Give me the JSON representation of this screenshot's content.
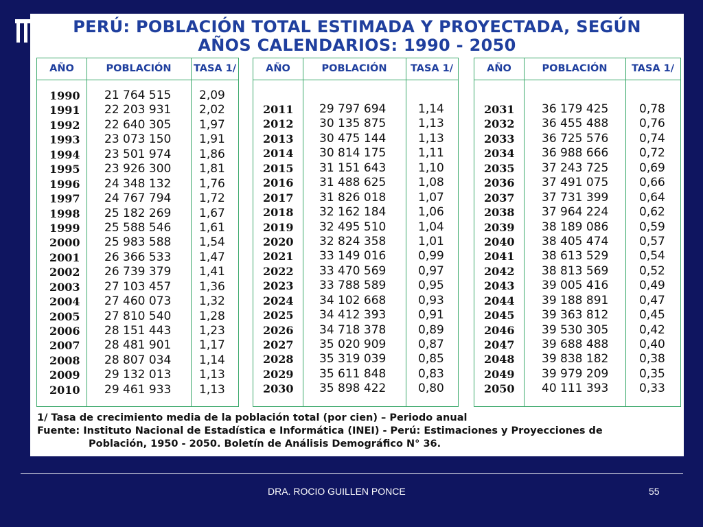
{
  "title": {
    "line1": "PERÚ: POBLACIÓN TOTAL ESTIMADA Y PROYECTADA, SEGÚN",
    "line2": "AÑOS CALENDARIOS: 1990 - 2050"
  },
  "headers": {
    "year": "AÑO",
    "population": "POBLACIÓN",
    "rate": "TASA 1/"
  },
  "tables": [
    {
      "rows": [
        [
          "1990",
          "21 764 515",
          "2,09"
        ],
        [
          "1991",
          "22 203 931",
          "2,02"
        ],
        [
          "1992",
          "22 640 305",
          "1,97"
        ],
        [
          "1993",
          "23 073 150",
          "1,91"
        ],
        [
          "1994",
          "23 501 974",
          "1,86"
        ],
        [
          "1995",
          "23 926 300",
          "1,81"
        ],
        [
          "1996",
          "24 348 132",
          "1,76"
        ],
        [
          "1997",
          "24 767 794",
          "1,72"
        ],
        [
          "1998",
          "25 182 269",
          "1,67"
        ],
        [
          "1999",
          "25 588 546",
          "1,61"
        ],
        [
          "2000",
          "25 983 588",
          "1,54"
        ],
        [
          "2001",
          "26 366 533",
          "1,47"
        ],
        [
          "2002",
          "26 739 379",
          "1,41"
        ],
        [
          "2003",
          "27 103 457",
          "1,36"
        ],
        [
          "2004",
          "27 460 073",
          "1,32"
        ],
        [
          "2005",
          "27 810 540",
          "1,28"
        ],
        [
          "2006",
          "28 151 443",
          "1,23"
        ],
        [
          "2007",
          "28 481 901",
          "1,17"
        ],
        [
          "2008",
          "28 807 034",
          "1,14"
        ],
        [
          "2009",
          "29 132 013",
          "1,13"
        ],
        [
          "2010",
          "29 461 933",
          "1,13"
        ]
      ]
    },
    {
      "rows": [
        [
          "2011",
          "29 797 694",
          "1,14"
        ],
        [
          "2012",
          "30 135 875",
          "1,13"
        ],
        [
          "2013",
          "30 475 144",
          "1,13"
        ],
        [
          "2014",
          "30 814 175",
          "1,11"
        ],
        [
          "2015",
          "31 151 643",
          "1,10"
        ],
        [
          "2016",
          "31 488 625",
          "1,08"
        ],
        [
          "2017",
          "31 826 018",
          "1,07"
        ],
        [
          "2018",
          "32 162 184",
          "1,06"
        ],
        [
          "2019",
          "32 495 510",
          "1,04"
        ],
        [
          "2020",
          "32 824 358",
          "1,01"
        ],
        [
          "2021",
          "33 149 016",
          "0,99"
        ],
        [
          "2022",
          "33 470 569",
          "0,97"
        ],
        [
          "2023",
          "33 788 589",
          "0,95"
        ],
        [
          "2024",
          "34 102 668",
          "0,93"
        ],
        [
          "2025",
          "34 412 393",
          "0,91"
        ],
        [
          "2026",
          "34 718 378",
          "0,89"
        ],
        [
          "2027",
          "35 020 909",
          "0,87"
        ],
        [
          "2028",
          "35 319 039",
          "0,85"
        ],
        [
          "2029",
          "35 611 848",
          "0,83"
        ],
        [
          "2030",
          "35 898 422",
          "0,80"
        ]
      ]
    },
    {
      "rows": [
        [
          "2031",
          "36 179 425",
          "0,78"
        ],
        [
          "2032",
          "36 455 488",
          "0,76"
        ],
        [
          "2033",
          "36 725 576",
          "0,74"
        ],
        [
          "2034",
          "36 988 666",
          "0,72"
        ],
        [
          "2035",
          "37 243 725",
          "0,69"
        ],
        [
          "2036",
          "37 491 075",
          "0,66"
        ],
        [
          "2037",
          "37 731 399",
          "0,64"
        ],
        [
          "2038",
          "37 964 224",
          "0,62"
        ],
        [
          "2039",
          "38 189 086",
          "0,59"
        ],
        [
          "2040",
          "38 405 474",
          "0,57"
        ],
        [
          "2041",
          "38 613 529",
          "0,54"
        ],
        [
          "2042",
          "38 813 569",
          "0,52"
        ],
        [
          "2043",
          "39 005 416",
          "0,49"
        ],
        [
          "2044",
          "39 188 891",
          "0,47"
        ],
        [
          "2045",
          "39 363 812",
          "0,45"
        ],
        [
          "2046",
          "39 530 305",
          "0,42"
        ],
        [
          "2047",
          "39 688 488",
          "0,40"
        ],
        [
          "2048",
          "39 838 182",
          "0,38"
        ],
        [
          "2049",
          "39 979 209",
          "0,35"
        ],
        [
          "2050",
          "40 111 393",
          "0,33"
        ]
      ]
    }
  ],
  "footnote": {
    "line1": "1/ Tasa de crecimiento media de la población total (por cien) – Periodo anual",
    "line2": "Fuente: Instituto Nacional de Estadística e Informática (INEI) - Perú: Estimaciones y  Proyecciones de",
    "line3": "Población, 1950 - 2050. Boletín de Análisis Demográfico N° 36."
  },
  "footer": {
    "author": "DRA. ROCIO GUILLEN PONCE",
    "page": "55"
  },
  "colors": {
    "background": "#0f1560",
    "title": "#1f3f9e",
    "border": "#3aa86a"
  }
}
